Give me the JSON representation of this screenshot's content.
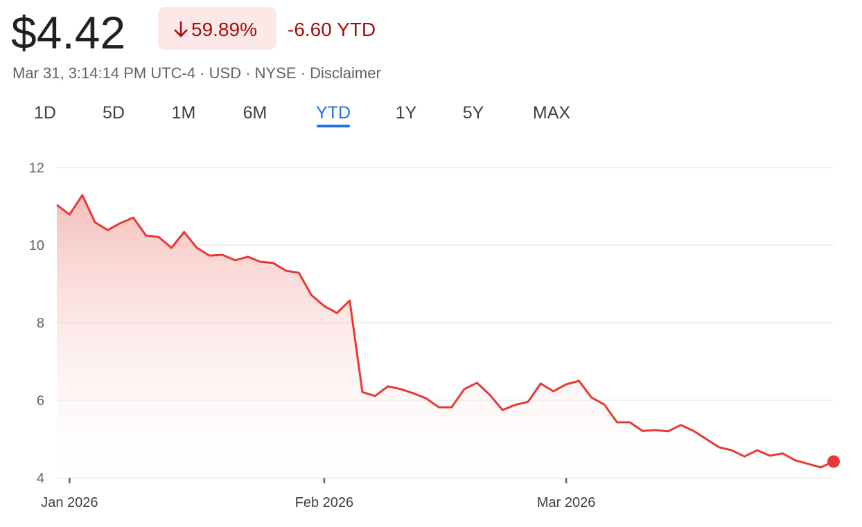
{
  "header": {
    "price": "$4.42",
    "change_percent": "59.89%",
    "change_ytd": "-6.60 YTD",
    "meta": "Mar 31, 3:14:14 PM UTC-4 · USD · NYSE ·",
    "disclaimer": "Disclaimer"
  },
  "tabs": {
    "items": [
      "1D",
      "5D",
      "1M",
      "6M",
      "YTD",
      "1Y",
      "5Y",
      "MAX"
    ],
    "selected": "YTD"
  },
  "chart_data": {
    "type": "line",
    "color": "#e53935",
    "grid": true,
    "categories": [
      null,
      "Jan 2026",
      null,
      null,
      null,
      null,
      null,
      null,
      null,
      null,
      null,
      null,
      null,
      null,
      null,
      null,
      null,
      null,
      null,
      null,
      null,
      "Feb 2026",
      null,
      null,
      null,
      null,
      null,
      null,
      null,
      null,
      null,
      null,
      null,
      null,
      null,
      null,
      null,
      null,
      null,
      null,
      "Mar 2026",
      null,
      null,
      null,
      null,
      null,
      null,
      null,
      null,
      null,
      null,
      null,
      null,
      null,
      null,
      null,
      null,
      null,
      null,
      null,
      null,
      null
    ],
    "values": [
      11.04,
      10.79,
      11.29,
      10.59,
      10.39,
      10.57,
      10.71,
      10.25,
      10.21,
      9.93,
      10.34,
      9.93,
      9.73,
      9.75,
      9.61,
      9.7,
      9.57,
      9.54,
      9.34,
      9.29,
      8.71,
      8.43,
      8.25,
      8.57,
      6.21,
      6.11,
      6.36,
      6.29,
      6.18,
      6.05,
      5.82,
      5.82,
      6.29,
      6.45,
      6.14,
      5.75,
      5.88,
      5.96,
      6.43,
      6.23,
      6.41,
      6.5,
      6.07,
      5.89,
      5.43,
      5.43,
      5.21,
      5.23,
      5.2,
      5.36,
      5.21,
      5.0,
      4.79,
      4.71,
      4.55,
      4.71,
      4.57,
      4.63,
      4.45,
      4.36,
      4.27,
      4.42
    ],
    "ylim": [
      4,
      12
    ],
    "yticks": [
      4,
      6,
      8,
      10,
      12
    ]
  }
}
